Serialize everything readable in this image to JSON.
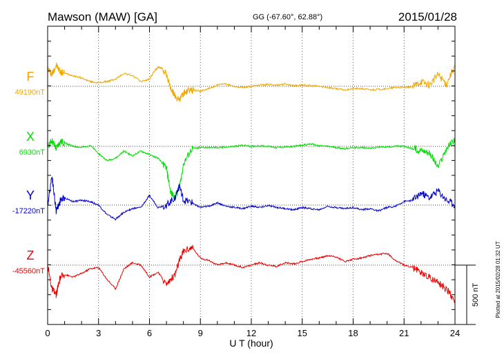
{
  "chart_data": {
    "type": "line",
    "title": "Mawson (MAW)  [GA]",
    "coords": "GG (-67.60°,  62.88°)",
    "date": "2015/01/28",
    "xlabel": "U T (hour)",
    "xlim": [
      0,
      24
    ],
    "x_ticks": [
      "0",
      "3",
      "6",
      "9",
      "12",
      "15",
      "18",
      "21",
      "24"
    ],
    "scale_label": "500 nT",
    "plotted_note": "Plotted at 2015/02/28 01:32 UT",
    "series": [
      {
        "name": "F",
        "baseline_label": "49190nT",
        "color": "#f0a800",
        "x": [
          0,
          0.25,
          0.5,
          0.75,
          1,
          1.5,
          2,
          2.5,
          3,
          3.5,
          4,
          4.5,
          5,
          5.5,
          6,
          6.25,
          6.5,
          6.75,
          7,
          7.25,
          7.5,
          7.75,
          8,
          8.25,
          8.5,
          9,
          9.5,
          10,
          10.5,
          11,
          11.5,
          12,
          12.5,
          13,
          13.5,
          14,
          14.5,
          15,
          15.5,
          16,
          16.5,
          17,
          17.5,
          18,
          18.5,
          19,
          19.5,
          20,
          20.5,
          21,
          21.5,
          22,
          22.5,
          23,
          23.5,
          24
        ],
        "values": [
          150,
          100,
          180,
          120,
          110,
          90,
          70,
          40,
          30,
          40,
          60,
          110,
          90,
          40,
          60,
          120,
          160,
          150,
          100,
          -20,
          -80,
          -120,
          -60,
          -40,
          -30,
          -40,
          -20,
          10,
          20,
          0,
          -10,
          0,
          10,
          15,
          10,
          20,
          5,
          10,
          5,
          0,
          -10,
          -20,
          -30,
          -20,
          -20,
          -30,
          -25,
          -20,
          -10,
          -10,
          -5,
          40,
          10,
          100,
          20,
          180
        ]
      },
      {
        "name": "X",
        "baseline_label": "6930nT",
        "color": "#00dd00",
        "x": [
          0,
          0.25,
          0.5,
          0.75,
          1,
          1.5,
          2,
          2.5,
          3,
          3.5,
          4,
          4.5,
          5,
          5.5,
          6,
          6.5,
          7,
          7.25,
          7.5,
          7.75,
          8,
          8.5,
          9,
          9.5,
          10,
          10.5,
          11,
          11.5,
          12,
          12.5,
          13,
          13.5,
          14,
          14.5,
          15,
          15.5,
          16,
          16.5,
          17,
          17.5,
          18,
          18.5,
          19,
          19.5,
          20,
          20.5,
          21,
          21.5,
          22,
          22.5,
          23,
          23.5,
          24
        ],
        "values": [
          0,
          50,
          -20,
          40,
          30,
          0,
          -10,
          10,
          -60,
          -120,
          -100,
          -40,
          -80,
          -40,
          -70,
          -100,
          -180,
          -390,
          -430,
          -350,
          -150,
          -20,
          -10,
          -10,
          -10,
          -5,
          0,
          10,
          0,
          5,
          0,
          -10,
          -5,
          0,
          10,
          20,
          5,
          0,
          -10,
          -20,
          -10,
          -10,
          -15,
          -5,
          -5,
          0,
          0,
          -20,
          -30,
          -50,
          -180,
          -20,
          60
        ]
      },
      {
        "name": "Y",
        "baseline_label": "-17220nT",
        "color": "#0000cc",
        "x": [
          0,
          0.25,
          0.5,
          0.75,
          1,
          1.5,
          2,
          2.5,
          3,
          3.5,
          4,
          4.5,
          5,
          5.5,
          6,
          6.5,
          7,
          7.5,
          7.75,
          8,
          8.5,
          9,
          9.5,
          10,
          10.5,
          11,
          11.5,
          12,
          12.5,
          13,
          13.5,
          14,
          14.5,
          15,
          15.5,
          16,
          16.5,
          17,
          17.5,
          18,
          18.5,
          19,
          19.5,
          20,
          20.5,
          21,
          21.5,
          22,
          22.5,
          23,
          23.5,
          24
        ],
        "values": [
          0,
          250,
          -50,
          40,
          60,
          30,
          40,
          30,
          0,
          -80,
          -120,
          -60,
          -30,
          -20,
          80,
          -20,
          0,
          60,
          170,
          40,
          20,
          -20,
          -10,
          20,
          -10,
          -20,
          -30,
          -10,
          -20,
          -5,
          -20,
          -30,
          -40,
          -20,
          -30,
          -40,
          -10,
          -20,
          -30,
          -20,
          -40,
          -30,
          -50,
          -20,
          -10,
          30,
          40,
          100,
          60,
          120,
          40,
          0
        ]
      },
      {
        "name": "Z",
        "baseline_label": "-45560nT",
        "color": "#ee0000",
        "x": [
          0,
          0.25,
          0.5,
          0.75,
          1,
          1.5,
          2,
          2.5,
          3,
          3.5,
          4,
          4.5,
          5,
          5.5,
          6,
          6.5,
          7,
          7.5,
          7.75,
          8,
          8.5,
          9,
          9.5,
          10,
          10.5,
          11,
          11.5,
          12,
          12.5,
          13,
          13.5,
          14,
          14.5,
          15,
          15.5,
          16,
          16.5,
          17,
          17.5,
          18,
          18.5,
          19,
          19.5,
          20,
          20.5,
          21,
          21.5,
          22,
          22.5,
          23,
          23.5,
          24
        ],
        "values": [
          0,
          -200,
          -250,
          -100,
          -80,
          -100,
          -70,
          -30,
          -20,
          -120,
          -200,
          -30,
          20,
          0,
          -100,
          -60,
          -160,
          -80,
          30,
          120,
          150,
          60,
          40,
          0,
          20,
          0,
          -20,
          0,
          20,
          0,
          -10,
          20,
          10,
          30,
          50,
          60,
          80,
          70,
          30,
          50,
          60,
          80,
          90,
          100,
          40,
          0,
          -20,
          -60,
          -100,
          -150,
          -200,
          -300
        ]
      }
    ]
  }
}
